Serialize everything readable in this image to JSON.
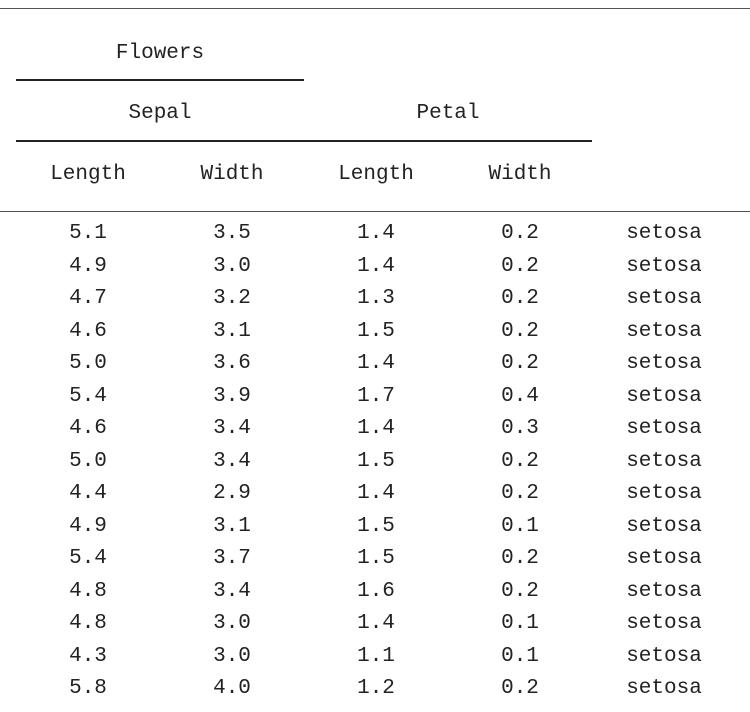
{
  "table": {
    "spanner_top": "Flowers",
    "spanner_groups": [
      "Sepal",
      "Petal"
    ],
    "columns": [
      "Length",
      "Width",
      "Length",
      "Width",
      ""
    ],
    "rows": [
      [
        "5.1",
        "3.5",
        "1.4",
        "0.2",
        "setosa"
      ],
      [
        "4.9",
        "3.0",
        "1.4",
        "0.2",
        "setosa"
      ],
      [
        "4.7",
        "3.2",
        "1.3",
        "0.2",
        "setosa"
      ],
      [
        "4.6",
        "3.1",
        "1.5",
        "0.2",
        "setosa"
      ],
      [
        "5.0",
        "3.6",
        "1.4",
        "0.2",
        "setosa"
      ],
      [
        "5.4",
        "3.9",
        "1.7",
        "0.4",
        "setosa"
      ],
      [
        "4.6",
        "3.4",
        "1.4",
        "0.3",
        "setosa"
      ],
      [
        "5.0",
        "3.4",
        "1.5",
        "0.2",
        "setosa"
      ],
      [
        "4.4",
        "2.9",
        "1.4",
        "0.2",
        "setosa"
      ],
      [
        "4.9",
        "3.1",
        "1.5",
        "0.1",
        "setosa"
      ],
      [
        "5.4",
        "3.7",
        "1.5",
        "0.2",
        "setosa"
      ],
      [
        "4.8",
        "3.4",
        "1.6",
        "0.2",
        "setosa"
      ],
      [
        "4.8",
        "3.0",
        "1.4",
        "0.1",
        "setosa"
      ],
      [
        "4.3",
        "3.0",
        "1.1",
        "0.1",
        "setosa"
      ],
      [
        "5.8",
        "4.0",
        "1.2",
        "0.2",
        "setosa"
      ]
    ]
  }
}
